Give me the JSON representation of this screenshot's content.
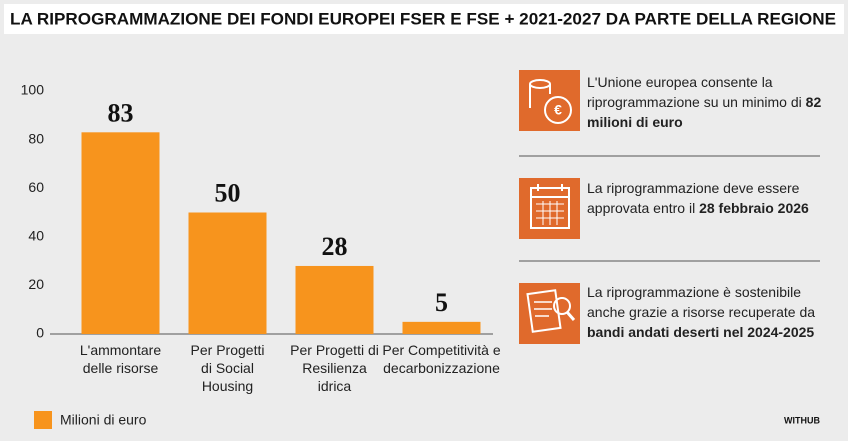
{
  "chart_data": {
    "type": "bar",
    "title": "LA RIPROGRAMMAZIONE DEI FONDI EUROPEI FSER E FSE + 2021-2027 DA PARTE DELLA REGIONE",
    "categories": [
      "L'ammontare delle risorse",
      "Per Progetti di Social Housing",
      "Per Progetti di Resilienza idrica",
      "Per Competitività e decarbonizzazione"
    ],
    "series": [
      {
        "name": "Milioni di euro",
        "color": "#f7941d",
        "values": [
          83,
          50,
          28,
          5
        ]
      }
    ],
    "ylim": [
      0,
      100
    ],
    "yticks": [
      0,
      20,
      40,
      60,
      80,
      100
    ],
    "grid": false,
    "legend": "bottom-left",
    "annotations": [
      {
        "text": "L'Unione europea consente la riprogrammazione su un minimo di",
        "highlight": "82 milioni di euro"
      },
      {
        "text": "La riprogrammazione deve essere approvata entro il",
        "highlight": "28 febbraio 2026"
      },
      {
        "text": "La riprogrammazione è sostenibile anche grazie a risorse recuperate da",
        "highlight": "bandi andati deserti nel 2024-2025"
      }
    ],
    "source": "WITHUB"
  }
}
